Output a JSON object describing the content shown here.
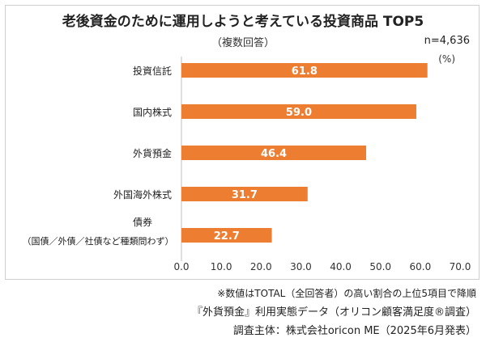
{
  "header": {
    "title": "老後資金のために運用しようと考えている投資商品 TOP5",
    "subtitle": "（複数回答）",
    "sample": "n=4,636",
    "unit": "(%)"
  },
  "chart_data": {
    "type": "bar",
    "orientation": "horizontal",
    "categories": [
      [
        "投資信託"
      ],
      [
        "国内株式"
      ],
      [
        "外貨預金"
      ],
      [
        "外国海外株式"
      ],
      [
        "債券",
        "（国債／外債／社債など種類問わず）"
      ]
    ],
    "values": [
      61.8,
      59.0,
      46.4,
      31.7,
      22.7
    ],
    "value_labels": [
      "61.8",
      "59.0",
      "46.4",
      "31.7",
      "22.7"
    ],
    "xlim": [
      0,
      70
    ],
    "xticks": [
      "0.0",
      "10.0",
      "20.0",
      "30.0",
      "40.0",
      "50.0",
      "60.0",
      "70.0"
    ],
    "bar_color": "#ed7d31",
    "label_color": "#ffffff",
    "grid": false
  },
  "footer": {
    "note": "※数値はTOTAL（全回答者）の高い割合の上位5項目で降順",
    "source": "『外貨預金』利用実態データ（オリコン顧客満足度®調査）",
    "survey": "調査主体：株式会社oricon ME（2025年6月発表）"
  }
}
